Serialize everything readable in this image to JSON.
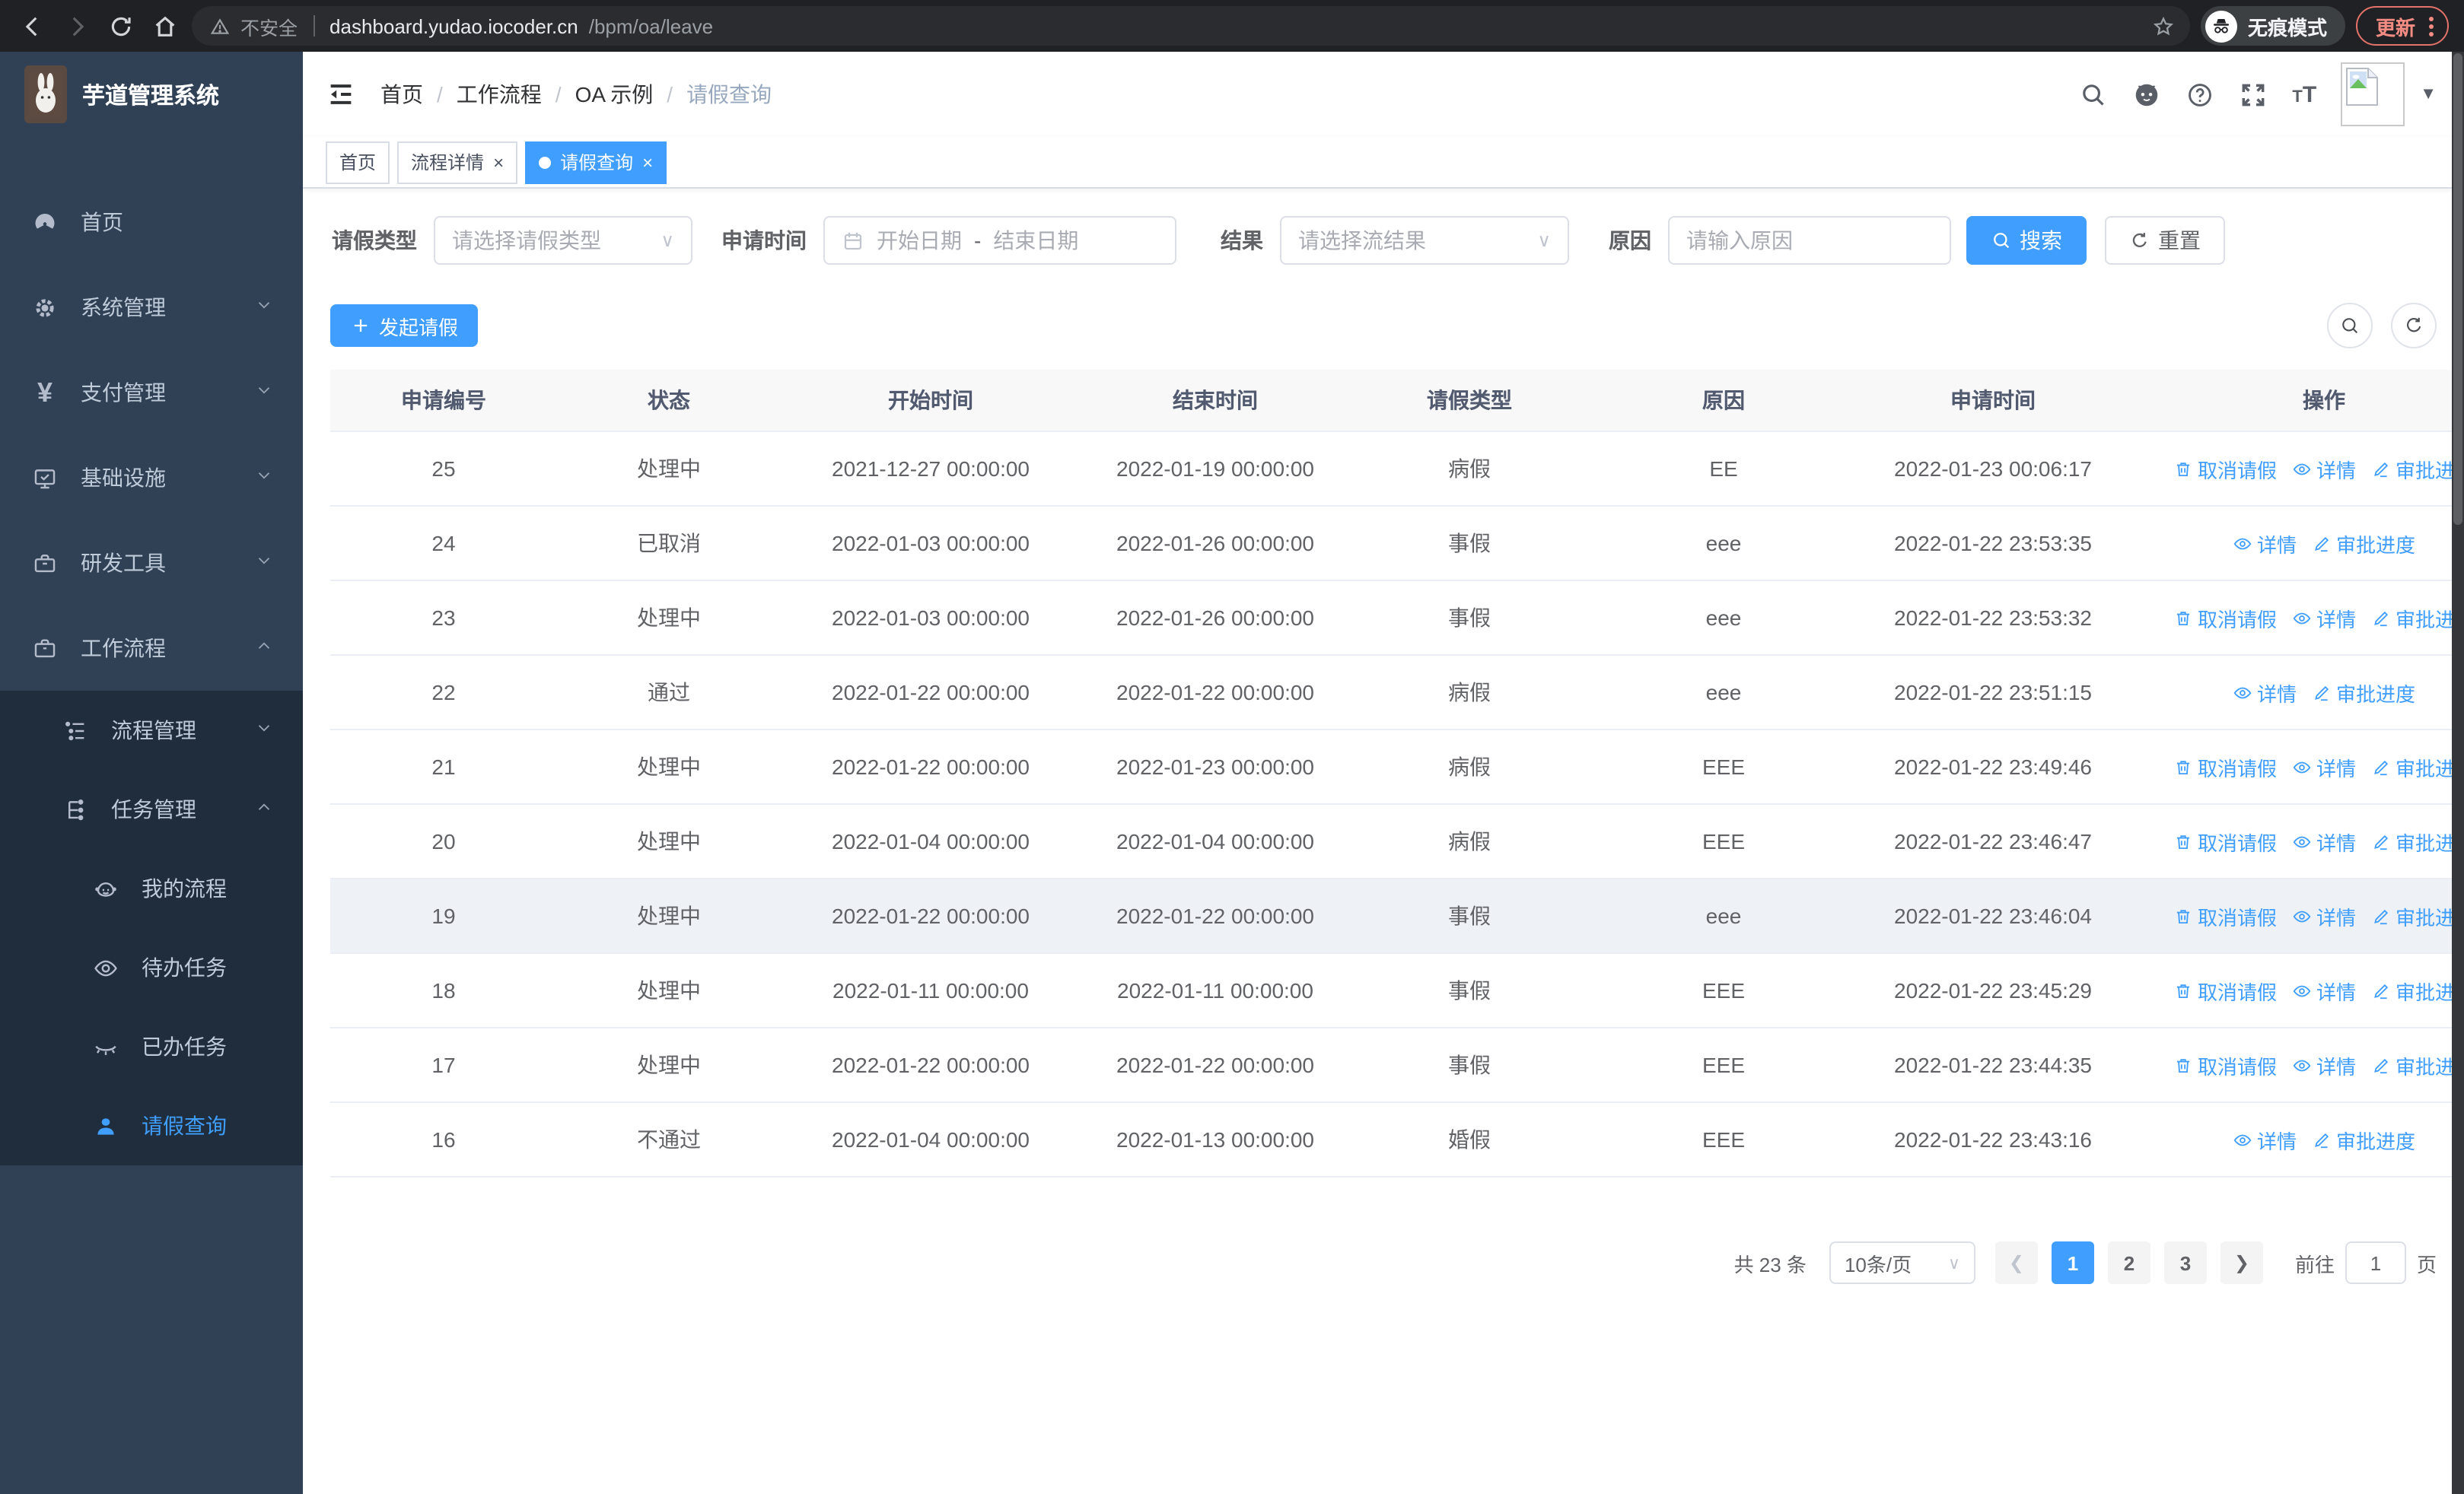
{
  "colors": {
    "primary": "#409eff",
    "sidebar_bg": "#304156",
    "sidebar_sub_bg": "#1f2d3d",
    "link": "#409eff",
    "update_red": "#f28b82",
    "header_text": "#515a6e"
  },
  "browser": {
    "security_label": "不安全",
    "url_host": "dashboard.yudao.iocoder.cn",
    "url_path": "/bpm/oa/leave",
    "incognito_label": "无痕模式",
    "update_label": "更新"
  },
  "sidebar": {
    "app_title": "芋道管理系统",
    "items": [
      {
        "key": "home",
        "label": "首页",
        "icon": "dashboard-icon"
      },
      {
        "key": "system",
        "label": "系统管理",
        "icon": "gear-icon",
        "expandable": true
      },
      {
        "key": "payment",
        "label": "支付管理",
        "icon": "yen-icon",
        "expandable": true
      },
      {
        "key": "infra",
        "label": "基础设施",
        "icon": "monitor-icon",
        "expandable": true
      },
      {
        "key": "devtools",
        "label": "研发工具",
        "icon": "toolbox-icon",
        "expandable": true
      },
      {
        "key": "workflow",
        "label": "工作流程",
        "icon": "briefcase-icon",
        "expandable": true,
        "expanded": true,
        "children": [
          {
            "key": "process-mgmt",
            "label": "流程管理",
            "icon": "list-icon",
            "expandable": true
          },
          {
            "key": "task-mgmt",
            "label": "任务管理",
            "icon": "tree-icon",
            "expandable": true,
            "expanded": true,
            "children": [
              {
                "key": "my-process",
                "label": "我的流程",
                "icon": "robot-icon"
              },
              {
                "key": "todo-tasks",
                "label": "待办任务",
                "icon": "eye-icon"
              },
              {
                "key": "done-tasks",
                "label": "已办任务",
                "icon": "eye-closed-icon"
              },
              {
                "key": "leave-query",
                "label": "请假查询",
                "icon": "user-icon",
                "active": true
              }
            ]
          }
        ]
      }
    ]
  },
  "header": {
    "breadcrumb": {
      "items": [
        "首页",
        "工作流程",
        "OA 示例",
        "请假查询"
      ],
      "separator": "/"
    }
  },
  "tabs": {
    "close_glyph": "×",
    "items": [
      {
        "label": "首页",
        "active": false,
        "closable": false
      },
      {
        "label": "流程详情",
        "active": false,
        "closable": true
      },
      {
        "label": "请假查询",
        "active": true,
        "closable": true
      }
    ]
  },
  "filters": {
    "leave_type": {
      "label": "请假类型",
      "placeholder": "请选择请假类型"
    },
    "apply_time": {
      "label": "申请时间",
      "start_placeholder": "开始日期",
      "separator": "-",
      "end_placeholder": "结束日期"
    },
    "result": {
      "label": "结果",
      "placeholder": "请选择流结果"
    },
    "reason": {
      "label": "原因",
      "placeholder": "请输入原因"
    },
    "search_label": "搜索",
    "reset_label": "重置"
  },
  "actions_bar": {
    "create_label": "发起请假"
  },
  "table": {
    "columns": [
      "申请编号",
      "状态",
      "开始时间",
      "结束时间",
      "请假类型",
      "原因",
      "申请时间",
      "操作"
    ],
    "action_defs": {
      "cancel": {
        "label": "取消请假",
        "icon": "delete-icon"
      },
      "view": {
        "label": "详情",
        "icon": "view-icon"
      },
      "progress": {
        "label": "审批进度",
        "icon": "edit-icon"
      }
    },
    "highlighted_row_id": "19",
    "rows": [
      {
        "id": "25",
        "status": "处理中",
        "start": "2021-12-27 00:00:00",
        "end": "2022-01-19 00:00:00",
        "type": "病假",
        "reason": "EE",
        "apply_time": "2022-01-23 00:06:17",
        "actions": [
          "cancel",
          "view",
          "progress"
        ]
      },
      {
        "id": "24",
        "status": "已取消",
        "start": "2022-01-03 00:00:00",
        "end": "2022-01-26 00:00:00",
        "type": "事假",
        "reason": "eee",
        "apply_time": "2022-01-22 23:53:35",
        "actions": [
          "view",
          "progress"
        ]
      },
      {
        "id": "23",
        "status": "处理中",
        "start": "2022-01-03 00:00:00",
        "end": "2022-01-26 00:00:00",
        "type": "事假",
        "reason": "eee",
        "apply_time": "2022-01-22 23:53:32",
        "actions": [
          "cancel",
          "view",
          "progress"
        ]
      },
      {
        "id": "22",
        "status": "通过",
        "start": "2022-01-22 00:00:00",
        "end": "2022-01-22 00:00:00",
        "type": "病假",
        "reason": "eee",
        "apply_time": "2022-01-22 23:51:15",
        "actions": [
          "view",
          "progress"
        ]
      },
      {
        "id": "21",
        "status": "处理中",
        "start": "2022-01-22 00:00:00",
        "end": "2022-01-23 00:00:00",
        "type": "病假",
        "reason": "EEE",
        "apply_time": "2022-01-22 23:49:46",
        "actions": [
          "cancel",
          "view",
          "progress"
        ]
      },
      {
        "id": "20",
        "status": "处理中",
        "start": "2022-01-04 00:00:00",
        "end": "2022-01-04 00:00:00",
        "type": "病假",
        "reason": "EEE",
        "apply_time": "2022-01-22 23:46:47",
        "actions": [
          "cancel",
          "view",
          "progress"
        ]
      },
      {
        "id": "19",
        "status": "处理中",
        "start": "2022-01-22 00:00:00",
        "end": "2022-01-22 00:00:00",
        "type": "事假",
        "reason": "eee",
        "apply_time": "2022-01-22 23:46:04",
        "actions": [
          "cancel",
          "view",
          "progress"
        ]
      },
      {
        "id": "18",
        "status": "处理中",
        "start": "2022-01-11 00:00:00",
        "end": "2022-01-11 00:00:00",
        "type": "事假",
        "reason": "EEE",
        "apply_time": "2022-01-22 23:45:29",
        "actions": [
          "cancel",
          "view",
          "progress"
        ]
      },
      {
        "id": "17",
        "status": "处理中",
        "start": "2022-01-22 00:00:00",
        "end": "2022-01-22 00:00:00",
        "type": "事假",
        "reason": "EEE",
        "apply_time": "2022-01-22 23:44:35",
        "actions": [
          "cancel",
          "view",
          "progress"
        ]
      },
      {
        "id": "16",
        "status": "不通过",
        "start": "2022-01-04 00:00:00",
        "end": "2022-01-13 00:00:00",
        "type": "婚假",
        "reason": "EEE",
        "apply_time": "2022-01-22 23:43:16",
        "actions": [
          "view",
          "progress"
        ]
      }
    ]
  },
  "pagination": {
    "total_label": "共 23 条",
    "page_size_label": "10条/页",
    "pages": [
      "1",
      "2",
      "3"
    ],
    "active_page": "1",
    "goto_label": "前往",
    "goto_value": "1",
    "goto_suffix_label": "页"
  }
}
